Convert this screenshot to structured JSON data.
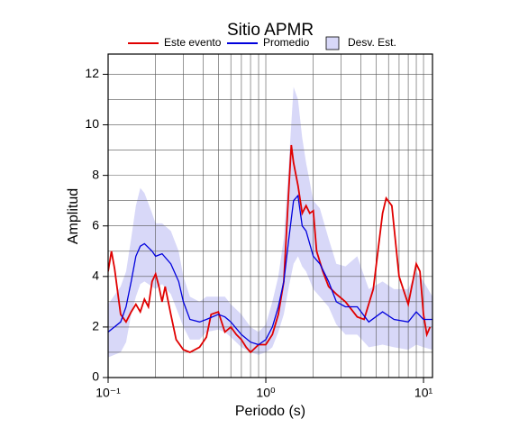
{
  "chart_data": {
    "type": "line",
    "title": "Sitio APMR",
    "x_label": "Periodo (s)",
    "y_label": "Amplitud",
    "xlog": true,
    "grid": true,
    "xlim": [
      0.1,
      11.4
    ],
    "ylim": [
      0,
      12.8
    ],
    "xticks": [
      {
        "value": 0.1,
        "label": "10⁻¹"
      },
      {
        "value": 1,
        "label": "10⁰"
      },
      {
        "value": 10,
        "label": "10¹"
      }
    ],
    "yticks": [
      0,
      2,
      4,
      6,
      8,
      10,
      12
    ],
    "band": {
      "name": "Desv. Est.",
      "color": "#d8d8f8",
      "x": [
        0.1,
        0.12,
        0.13,
        0.14,
        0.15,
        0.16,
        0.17,
        0.19,
        0.2,
        0.22,
        0.25,
        0.28,
        0.3,
        0.33,
        0.38,
        0.42,
        0.5,
        0.55,
        0.6,
        0.7,
        0.8,
        0.9,
        1.0,
        1.1,
        1.2,
        1.3,
        1.4,
        1.5,
        1.6,
        1.7,
        1.8,
        2.0,
        2.2,
        2.5,
        2.8,
        3.2,
        3.8,
        4.5,
        5.5,
        6.5,
        8,
        9,
        10,
        11.4
      ],
      "upper": [
        2.9,
        3.6,
        4.2,
        5.5,
        6.8,
        7.5,
        7.3,
        6.5,
        6.1,
        6.1,
        5.8,
        5.0,
        4.0,
        3.2,
        3.0,
        3.2,
        3.2,
        3.2,
        2.9,
        2.5,
        2.0,
        1.8,
        2.1,
        3.0,
        4.0,
        5.5,
        8.5,
        11.5,
        11.0,
        9.5,
        8.5,
        7.0,
        6.7,
        5.5,
        4.5,
        4.4,
        4.8,
        3.5,
        3.8,
        3.5,
        3.5,
        4.2,
        3.8,
        3.2
      ],
      "lower": [
        0.8,
        1.0,
        1.4,
        2.5,
        3.2,
        3.7,
        3.8,
        3.6,
        3.5,
        3.7,
        3.3,
        2.5,
        2.0,
        1.5,
        1.5,
        1.8,
        1.9,
        1.8,
        1.6,
        1.2,
        1.0,
        0.9,
        1.0,
        1.2,
        1.8,
        2.5,
        3.6,
        4.5,
        4.8,
        4.4,
        4.2,
        3.5,
        3.2,
        2.8,
        2.1,
        1.7,
        1.7,
        1.2,
        1.3,
        1.2,
        1.1,
        1.3,
        1.2,
        1.1
      ]
    },
    "series": [
      {
        "name": "Este evento",
        "color": "#e00000",
        "x": [
          0.1,
          0.105,
          0.11,
          0.12,
          0.13,
          0.14,
          0.15,
          0.16,
          0.17,
          0.18,
          0.19,
          0.2,
          0.21,
          0.22,
          0.23,
          0.25,
          0.27,
          0.3,
          0.33,
          0.38,
          0.42,
          0.45,
          0.5,
          0.55,
          0.6,
          0.65,
          0.7,
          0.75,
          0.8,
          0.9,
          1.0,
          1.1,
          1.2,
          1.3,
          1.4,
          1.45,
          1.5,
          1.6,
          1.7,
          1.8,
          1.9,
          2.0,
          2.1,
          2.3,
          2.5,
          2.8,
          3.2,
          3.8,
          4.2,
          4.8,
          5.5,
          5.8,
          6.3,
          7.0,
          8.0,
          9.0,
          9.5,
          10.0,
          10.5,
          11.0
        ],
        "values": [
          4.2,
          5.0,
          4.3,
          2.5,
          2.2,
          2.6,
          2.9,
          2.6,
          3.1,
          2.8,
          3.8,
          4.1,
          3.6,
          3.0,
          3.6,
          2.5,
          1.5,
          1.1,
          1.0,
          1.2,
          1.6,
          2.5,
          2.6,
          1.8,
          2.0,
          1.7,
          1.5,
          1.2,
          1.0,
          1.3,
          1.3,
          1.7,
          2.5,
          3.8,
          7.5,
          9.2,
          8.5,
          7.6,
          6.5,
          6.8,
          6.5,
          6.6,
          5.0,
          4.2,
          3.6,
          3.3,
          3.0,
          2.4,
          2.3,
          3.5,
          6.5,
          7.1,
          6.8,
          4.0,
          2.9,
          4.5,
          4.2,
          2.5,
          1.7,
          2.0
        ]
      },
      {
        "name": "Promedio",
        "color": "#0000dd",
        "x": [
          0.1,
          0.12,
          0.13,
          0.14,
          0.15,
          0.16,
          0.17,
          0.19,
          0.2,
          0.22,
          0.25,
          0.28,
          0.3,
          0.33,
          0.38,
          0.42,
          0.5,
          0.55,
          0.6,
          0.7,
          0.8,
          0.9,
          1.0,
          1.1,
          1.2,
          1.3,
          1.4,
          1.5,
          1.6,
          1.7,
          1.8,
          2.0,
          2.2,
          2.5,
          2.8,
          3.2,
          3.8,
          4.5,
          5.5,
          6.5,
          8,
          9,
          10,
          11.4
        ],
        "values": [
          1.8,
          2.2,
          2.8,
          3.8,
          4.8,
          5.2,
          5.3,
          5.0,
          4.8,
          4.9,
          4.5,
          3.8,
          3.0,
          2.3,
          2.2,
          2.3,
          2.5,
          2.4,
          2.2,
          1.7,
          1.4,
          1.3,
          1.5,
          2.0,
          2.8,
          3.8,
          5.5,
          7.0,
          7.2,
          6.0,
          5.8,
          4.8,
          4.5,
          3.8,
          3.0,
          2.8,
          2.8,
          2.2,
          2.6,
          2.3,
          2.2,
          2.6,
          2.3,
          2.3
        ]
      }
    ]
  }
}
